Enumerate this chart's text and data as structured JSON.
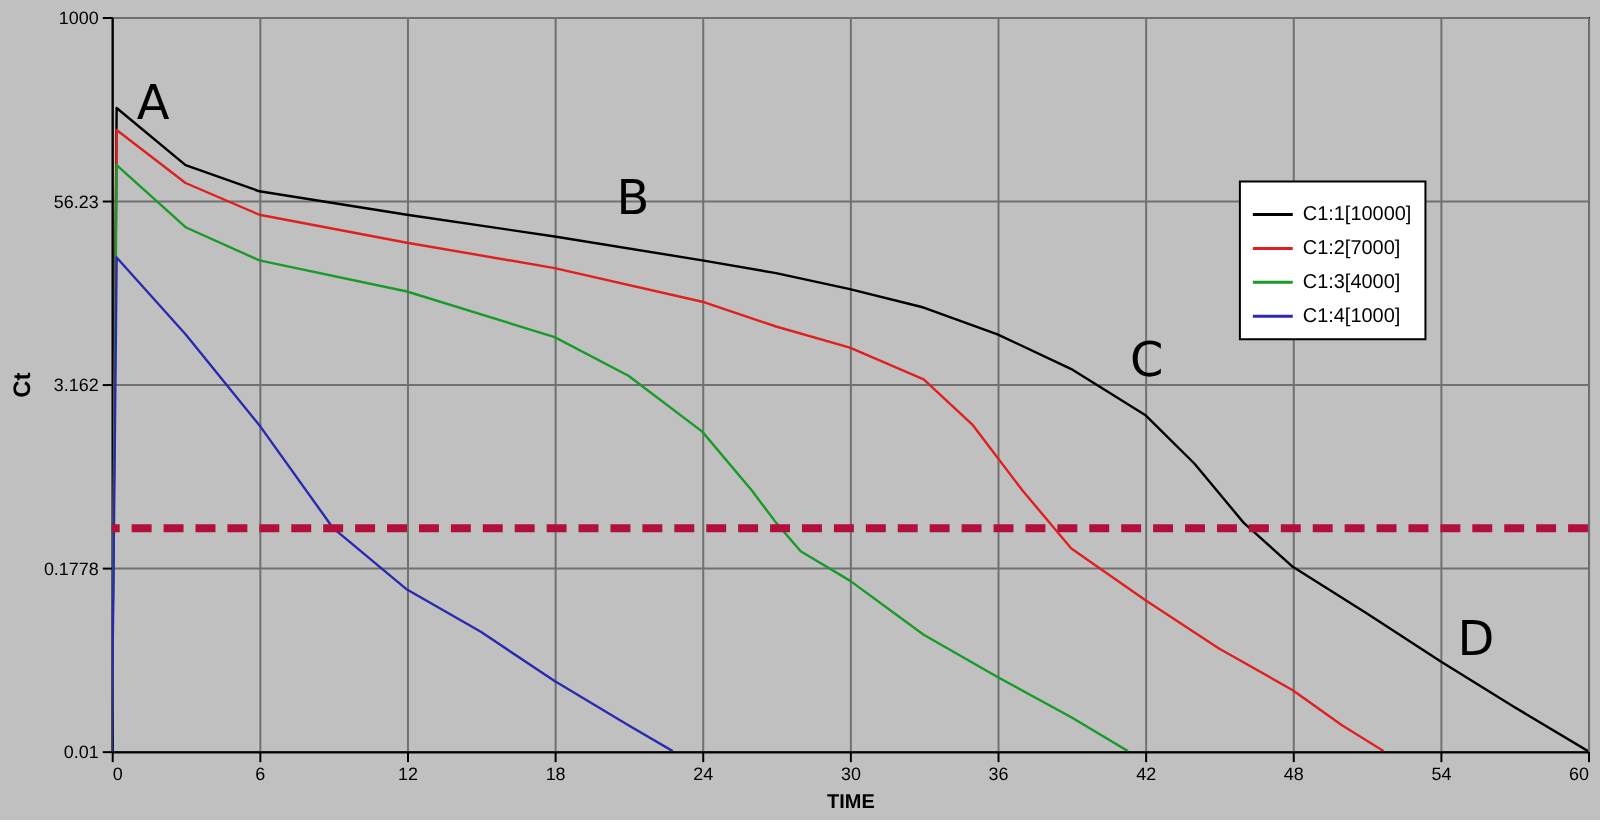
{
  "chart_data": {
    "type": "line",
    "xlabel": "TIME",
    "ylabel": "Ct",
    "log": "y",
    "xlim": [
      0,
      60
    ],
    "xticks": [
      0,
      6,
      12,
      18,
      24,
      30,
      36,
      42,
      48,
      54,
      60
    ],
    "ylim": [
      0.01,
      1000
    ],
    "yticks": [
      0.01,
      0.1778,
      3.162,
      56.23,
      1000
    ],
    "grid": true,
    "legend": "top right",
    "line_style": "solid",
    "marker": "none",
    "series": [
      {
        "name": "C1:1[10000]",
        "color": "#000000",
        "x": [
          0,
          0.2,
          3,
          6,
          12,
          18,
          24,
          27,
          30,
          33,
          36,
          39,
          42,
          44,
          46,
          48,
          51,
          54,
          57,
          60
        ],
        "values": [
          0.01,
          240,
          98,
          65,
          45,
          32,
          22,
          18,
          14,
          10.5,
          6.9,
          4.0,
          1.95,
          0.91,
          0.36,
          0.18,
          0.087,
          0.041,
          0.02,
          0.01
        ]
      },
      {
        "name": "C1:2[7000]",
        "color": "#e02020",
        "x": [
          0,
          0.2,
          3,
          6,
          12,
          18,
          24,
          27,
          30,
          33,
          35,
          37,
          39,
          42,
          45,
          48,
          50,
          51.7
        ],
        "values": [
          0.01,
          170,
          74,
          45,
          29,
          19.5,
          11.5,
          7.8,
          5.6,
          3.4,
          1.66,
          0.6,
          0.24,
          0.107,
          0.05,
          0.026,
          0.015,
          0.01
        ]
      },
      {
        "name": "C1:3[4000]",
        "color": "#1a9a2a",
        "x": [
          0,
          0.2,
          3,
          6,
          12,
          18,
          21,
          24,
          26,
          27,
          28,
          30,
          33,
          36,
          39,
          41.3
        ],
        "values": [
          0.01,
          98,
          37,
          22,
          13.5,
          6.6,
          3.6,
          1.5,
          0.6,
          0.36,
          0.23,
          0.145,
          0.062,
          0.032,
          0.017,
          0.01
        ]
      },
      {
        "name": "C1:4[1000]",
        "color": "#2a2ab0",
        "x": [
          0,
          0.2,
          3,
          6,
          9,
          12,
          15,
          18,
          21,
          22.8
        ],
        "values": [
          0.01,
          23,
          6.9,
          1.66,
          0.33,
          0.126,
          0.065,
          0.03,
          0.015,
          0.01
        ]
      }
    ],
    "ref_lines": [
      {
        "axis": "y",
        "value": 0.33,
        "color": "#b0103a",
        "line_style": "dashed"
      }
    ],
    "annotations": [
      "A",
      "B",
      "C",
      "D"
    ]
  }
}
